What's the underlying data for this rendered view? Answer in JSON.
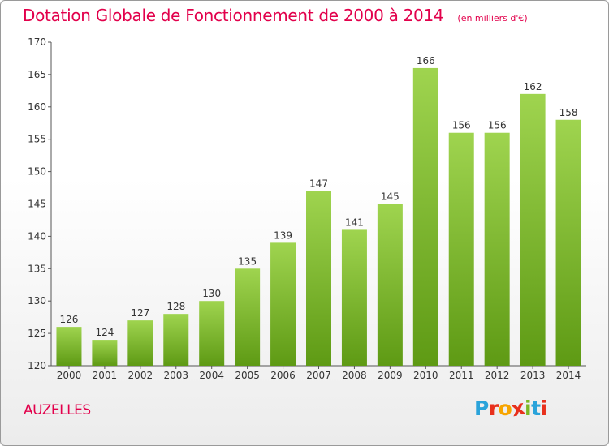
{
  "header": {
    "title": "Dotation Globale de Fonctionnement de 2000 à 2014",
    "subtitle": "(en milliers d'€)"
  },
  "footer": {
    "commune": "AUZELLES",
    "logo_text": "Proxiti"
  },
  "colors": {
    "title": "#e2004b",
    "bar_top": "#9fd44f",
    "bar_bottom": "#5e9a14",
    "logo": [
      "#2aa3da",
      "#e8301c",
      "#f7a500",
      "#e8301c",
      "#7cb824",
      "#2aa3da",
      "#e8301c"
    ]
  },
  "chart_data": {
    "type": "bar",
    "categories": [
      "2000",
      "2001",
      "2002",
      "2003",
      "2004",
      "2005",
      "2006",
      "2007",
      "2008",
      "2009",
      "2010",
      "2011",
      "2012",
      "2013",
      "2014"
    ],
    "values": [
      126,
      124,
      127,
      128,
      130,
      135,
      139,
      147,
      141,
      145,
      166,
      156,
      156,
      162,
      158
    ],
    "title": "Dotation Globale de Fonctionnement de 2000 à 2014",
    "xlabel": "",
    "ylabel": "",
    "ylim": [
      120,
      170
    ],
    "yticks": [
      120,
      125,
      130,
      135,
      140,
      145,
      150,
      155,
      160,
      165,
      170
    ],
    "grid": false,
    "data_labels": true
  }
}
